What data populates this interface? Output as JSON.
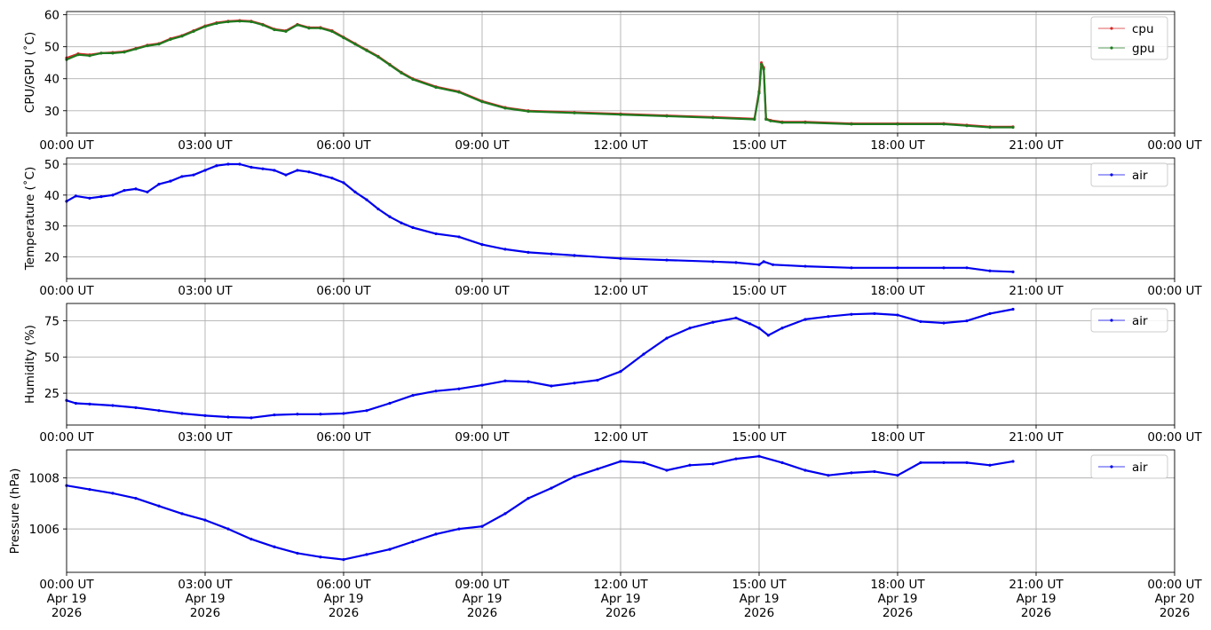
{
  "chart_data": [
    {
      "type": "line",
      "ylabel": "CPU/GPU (˚C)",
      "ylim": [
        23.0,
        61.0
      ],
      "yticks": [
        30,
        40,
        50,
        60
      ],
      "xlim": [
        "2026-04-19 00:00",
        "2026-04-20 00:00"
      ],
      "xtick_labels": [
        "00:00 UT",
        "03:00 UT",
        "06:00 UT",
        "09:00 UT",
        "12:00 UT",
        "15:00 UT",
        "18:00 UT",
        "21:00 UT",
        "00:00 UT"
      ],
      "grid": true,
      "legend": "top-right",
      "series": [
        {
          "name": "cpu",
          "color": "#d62728",
          "x_hours": [
            0,
            0.25,
            0.5,
            0.75,
            1.0,
            1.25,
            1.5,
            1.75,
            2.0,
            2.25,
            2.5,
            2.75,
            3.0,
            3.25,
            3.5,
            3.75,
            4.0,
            4.25,
            4.5,
            4.75,
            5.0,
            5.25,
            5.5,
            5.75,
            6.0,
            6.25,
            6.5,
            6.75,
            7.0,
            7.25,
            7.5,
            8.0,
            8.5,
            9.0,
            9.5,
            10.0,
            11.0,
            12.0,
            13.0,
            14.0,
            14.9,
            15.0,
            15.05,
            15.1,
            15.15,
            15.25,
            15.5,
            16.0,
            17.0,
            18.0,
            19.0,
            19.5,
            20.0,
            20.5
          ],
          "values": [
            46.5,
            47.8,
            47.5,
            48.0,
            48.2,
            48.5,
            49.5,
            50.5,
            51.0,
            52.5,
            53.5,
            55.0,
            56.5,
            57.5,
            58.0,
            58.2,
            58.0,
            57.0,
            55.5,
            55.0,
            57.0,
            56.0,
            56.0,
            55.0,
            53.0,
            51.0,
            49.0,
            47.0,
            44.5,
            42.0,
            40.0,
            37.5,
            36.0,
            33.0,
            31.0,
            30.0,
            29.5,
            29.0,
            28.5,
            28.0,
            27.5,
            36.0,
            45.0,
            43.5,
            27.5,
            27.0,
            26.5,
            26.5,
            26.0,
            26.0,
            26.0,
            25.5,
            25.0,
            25.0
          ]
        },
        {
          "name": "gpu",
          "color": "#1f7a1f",
          "x_hours": [
            0,
            0.25,
            0.5,
            0.75,
            1.0,
            1.25,
            1.5,
            1.75,
            2.0,
            2.25,
            2.5,
            2.75,
            3.0,
            3.25,
            3.5,
            3.75,
            4.0,
            4.25,
            4.5,
            4.75,
            5.0,
            5.25,
            5.5,
            5.75,
            6.0,
            6.25,
            6.5,
            6.75,
            7.0,
            7.25,
            7.5,
            8.0,
            8.5,
            9.0,
            9.5,
            10.0,
            11.0,
            12.0,
            13.0,
            14.0,
            14.9,
            15.0,
            15.05,
            15.1,
            15.15,
            15.25,
            15.5,
            16.0,
            17.0,
            18.0,
            19.0,
            19.5,
            20.0,
            20.5
          ],
          "values": [
            46.0,
            47.5,
            47.2,
            48.0,
            48.0,
            48.3,
            49.3,
            50.3,
            50.8,
            52.3,
            53.3,
            54.8,
            56.3,
            57.3,
            57.8,
            58.0,
            57.8,
            56.8,
            55.3,
            54.8,
            56.8,
            55.8,
            55.8,
            54.8,
            52.8,
            50.8,
            48.8,
            46.8,
            44.3,
            41.8,
            39.8,
            37.3,
            35.8,
            32.8,
            30.8,
            29.8,
            29.3,
            28.8,
            28.3,
            27.8,
            27.3,
            35.5,
            44.5,
            43.0,
            27.3,
            26.8,
            26.3,
            26.3,
            25.8,
            25.8,
            25.8,
            25.3,
            24.8,
            24.8
          ]
        }
      ]
    },
    {
      "type": "line",
      "ylabel": "Temperature (˚C)",
      "ylim": [
        13.0,
        52.0
      ],
      "yticks": [
        20,
        30,
        40,
        50
      ],
      "xlim": [
        "2026-04-19 00:00",
        "2026-04-20 00:00"
      ],
      "xtick_labels": [
        "00:00 UT",
        "03:00 UT",
        "06:00 UT",
        "09:00 UT",
        "12:00 UT",
        "15:00 UT",
        "18:00 UT",
        "21:00 UT",
        "00:00 UT"
      ],
      "grid": true,
      "legend": "top-right",
      "series": [
        {
          "name": "air",
          "color": "#0000ee",
          "x_hours": [
            0,
            0.2,
            0.5,
            0.75,
            1.0,
            1.25,
            1.5,
            1.75,
            2.0,
            2.25,
            2.5,
            2.75,
            3.0,
            3.25,
            3.5,
            3.75,
            4.0,
            4.25,
            4.5,
            4.75,
            5.0,
            5.25,
            5.5,
            5.75,
            6.0,
            6.25,
            6.5,
            6.75,
            7.0,
            7.25,
            7.5,
            8.0,
            8.5,
            9.0,
            9.5,
            10.0,
            10.5,
            11.0,
            12.0,
            13.0,
            14.0,
            14.5,
            15.0,
            15.1,
            15.3,
            16.0,
            17.0,
            18.0,
            19.0,
            19.5,
            20.0,
            20.5
          ],
          "values": [
            38.0,
            39.7,
            39.0,
            39.5,
            40.0,
            41.5,
            42.0,
            41.0,
            43.5,
            44.5,
            46.0,
            46.5,
            48.0,
            49.5,
            50.0,
            50.0,
            49.0,
            48.5,
            48.0,
            46.5,
            48.0,
            47.5,
            46.5,
            45.5,
            44.0,
            41.0,
            38.5,
            35.5,
            33.0,
            31.0,
            29.5,
            27.5,
            26.5,
            24.0,
            22.5,
            21.5,
            21.0,
            20.5,
            19.5,
            19.0,
            18.5,
            18.2,
            17.5,
            18.5,
            17.5,
            17.0,
            16.5,
            16.5,
            16.5,
            16.5,
            15.5,
            15.2
          ]
        }
      ]
    },
    {
      "type": "line",
      "ylabel": "Humidity (%)",
      "ylim": [
        3.0,
        87.0
      ],
      "yticks": [
        25,
        50,
        75
      ],
      "xlim": [
        "2026-04-19 00:00",
        "2026-04-20 00:00"
      ],
      "xtick_labels": [
        "00:00 UT",
        "03:00 UT",
        "06:00 UT",
        "09:00 UT",
        "12:00 UT",
        "15:00 UT",
        "18:00 UT",
        "21:00 UT",
        "00:00 UT"
      ],
      "grid": true,
      "legend": "top-right",
      "series": [
        {
          "name": "air",
          "color": "#0000ee",
          "x_hours": [
            0,
            0.2,
            0.5,
            1.0,
            1.5,
            2.0,
            2.5,
            3.0,
            3.5,
            4.0,
            4.5,
            5.0,
            5.5,
            6.0,
            6.5,
            7.0,
            7.5,
            8.0,
            8.5,
            9.0,
            9.5,
            10.0,
            10.5,
            11.0,
            11.5,
            12.0,
            12.5,
            13.0,
            13.5,
            14.0,
            14.5,
            14.8,
            15.0,
            15.2,
            15.5,
            16.0,
            16.5,
            17.0,
            17.5,
            18.0,
            18.5,
            19.0,
            19.5,
            20.0,
            20.5
          ],
          "values": [
            20.0,
            18.0,
            17.5,
            16.5,
            15.0,
            13.0,
            11.0,
            9.5,
            8.5,
            8.0,
            10.0,
            10.5,
            10.5,
            11.0,
            13.0,
            18.0,
            23.5,
            26.5,
            28.0,
            30.5,
            33.5,
            33.0,
            30.0,
            32.0,
            34.0,
            40.0,
            52.0,
            63.0,
            70.0,
            74.0,
            77.0,
            73.0,
            70.0,
            65.0,
            70.0,
            76.0,
            78.0,
            79.5,
            80.0,
            79.0,
            74.5,
            73.5,
            75.0,
            80.0,
            83.0
          ]
        }
      ]
    },
    {
      "type": "line",
      "ylabel": "Pressure (hPa)",
      "ylim": [
        1004.3,
        1009.1
      ],
      "yticks": [
        1006,
        1008
      ],
      "xlim": [
        "2026-04-19 00:00",
        "2026-04-20 00:00"
      ],
      "xtick_labels": [
        "00:00 UT",
        "03:00 UT",
        "06:00 UT",
        "09:00 UT",
        "12:00 UT",
        "15:00 UT",
        "18:00 UT",
        "21:00 UT",
        "00:00 UT"
      ],
      "xtick_date_line1": [
        "Apr 19",
        "Apr 19",
        "Apr 19",
        "Apr 19",
        "Apr 19",
        "Apr 19",
        "Apr 19",
        "Apr 19",
        "Apr 20"
      ],
      "xtick_date_line2": [
        "2026",
        "2026",
        "2026",
        "2026",
        "2026",
        "2026",
        "2026",
        "2026",
        "2026"
      ],
      "grid": true,
      "legend": "top-right",
      "series": [
        {
          "name": "air",
          "color": "#0000ee",
          "x_hours": [
            0,
            0.5,
            1.0,
            1.5,
            2.0,
            2.5,
            3.0,
            3.5,
            4.0,
            4.5,
            5.0,
            5.5,
            6.0,
            6.5,
            7.0,
            7.5,
            8.0,
            8.5,
            9.0,
            9.5,
            10.0,
            10.5,
            11.0,
            11.5,
            12.0,
            12.5,
            13.0,
            13.5,
            14.0,
            14.5,
            15.0,
            15.5,
            16.0,
            16.5,
            17.0,
            17.5,
            18.0,
            18.5,
            19.0,
            19.5,
            20.0,
            20.5
          ],
          "values": [
            1007.7,
            1007.55,
            1007.4,
            1007.2,
            1006.9,
            1006.6,
            1006.35,
            1006.0,
            1005.6,
            1005.3,
            1005.05,
            1004.9,
            1004.8,
            1005.0,
            1005.2,
            1005.5,
            1005.8,
            1006.0,
            1006.1,
            1006.6,
            1007.2,
            1007.6,
            1008.05,
            1008.35,
            1008.65,
            1008.6,
            1008.3,
            1008.5,
            1008.55,
            1008.75,
            1008.85,
            1008.6,
            1008.3,
            1008.1,
            1008.2,
            1008.25,
            1008.1,
            1008.6,
            1008.6,
            1008.6,
            1008.5,
            1008.65
          ]
        }
      ]
    }
  ]
}
